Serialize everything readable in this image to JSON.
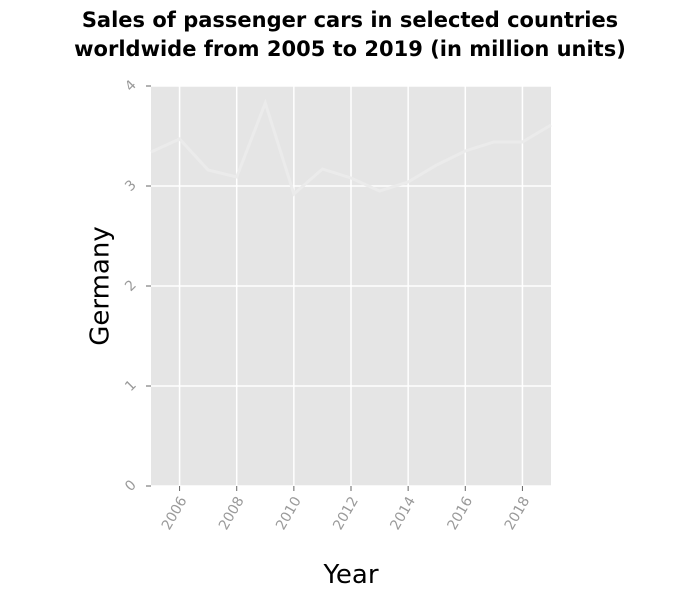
{
  "chart_data": {
    "type": "line",
    "title_lines": [
      "Sales of passenger cars in selected countries",
      "worldwide from 2005 to 2019 (in million units)"
    ],
    "xlabel": "Year",
    "ylabel": "Germany",
    "xlim": [
      2005,
      2019
    ],
    "ylim": [
      0,
      4
    ],
    "x_ticks": [
      2006,
      2008,
      2010,
      2012,
      2014,
      2016,
      2018
    ],
    "y_ticks": [
      0,
      1,
      2,
      3,
      4
    ],
    "grid": true,
    "colors": {
      "panel": "#e5e5e5",
      "grid": "#ffffff",
      "line": "#ebebeb",
      "tick_text": "#9a9a9a"
    },
    "series": [
      {
        "x": [
          2005,
          2006,
          2007,
          2008,
          2009,
          2010,
          2011,
          2012,
          2013,
          2014,
          2015,
          2016,
          2017,
          2018,
          2019
        ],
        "values": [
          3.34,
          3.47,
          3.16,
          3.09,
          3.83,
          2.92,
          3.17,
          3.08,
          2.95,
          3.04,
          3.21,
          3.35,
          3.44,
          3.44,
          3.61
        ]
      }
    ]
  }
}
